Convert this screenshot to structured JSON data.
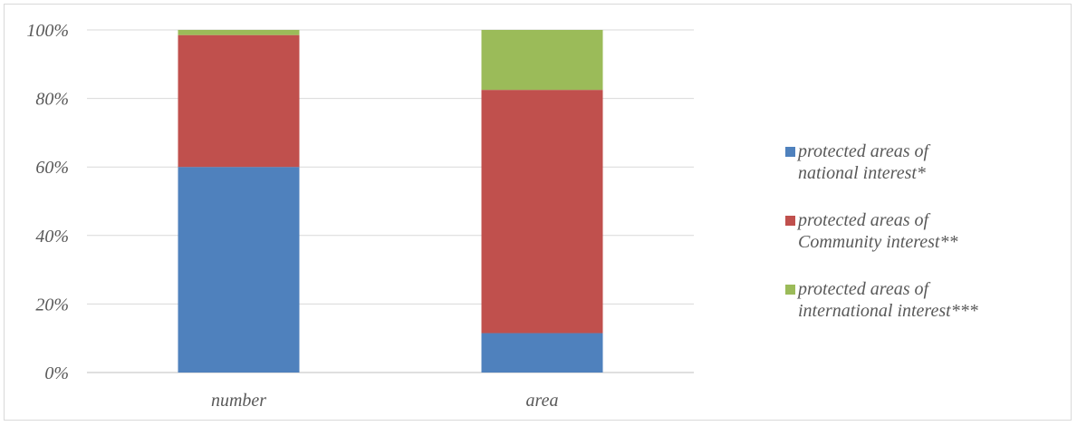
{
  "chart_data": {
    "type": "bar",
    "stacked": true,
    "categories": [
      "number",
      "area"
    ],
    "series": [
      {
        "name": "protected areas of national interest*",
        "color": "#4f81bd",
        "values": [
          60,
          11.5
        ]
      },
      {
        "name": "protected areas of Community interest**",
        "color": "#c0504d",
        "values": [
          38.5,
          71
        ]
      },
      {
        "name": "protected areas of international interest***",
        "color": "#9bbb59",
        "values": [
          1.5,
          17.5
        ]
      }
    ],
    "ylim": [
      0,
      100
    ],
    "y_ticks": [
      "0%",
      "20%",
      "40%",
      "60%",
      "80%",
      "100%"
    ],
    "y_tick_values": [
      0,
      20,
      40,
      60,
      80,
      100
    ],
    "grid": true,
    "legend_position": "right",
    "title": "",
    "xlabel": "",
    "ylabel": ""
  }
}
